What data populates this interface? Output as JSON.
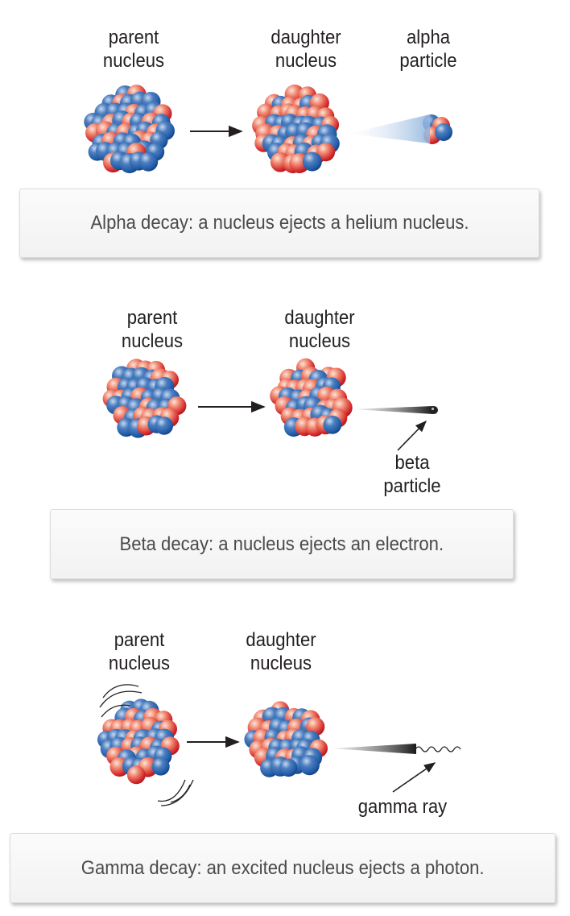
{
  "alpha": {
    "parent_label": [
      "parent",
      "nucleus"
    ],
    "daughter_label": [
      "daughter",
      "nucleus"
    ],
    "particle_label": [
      "alpha",
      "particle"
    ],
    "caption": "Alpha decay: a nucleus ejects a helium nucleus."
  },
  "beta": {
    "parent_label": [
      "parent",
      "nucleus"
    ],
    "daughter_label": [
      "daughter",
      "nucleus"
    ],
    "particle_label": [
      "beta",
      "particle"
    ],
    "caption": "Beta decay: a nucleus ejects an electron."
  },
  "gamma": {
    "parent_label": [
      "parent",
      "nucleus"
    ],
    "daughter_label": [
      "daughter",
      "nucleus"
    ],
    "particle_label": [
      "gamma ray"
    ],
    "caption": "Gamma decay: an excited nucleus ejects a photon."
  },
  "colors": {
    "proton": "#d42a2c",
    "neutron": "#1f5aa6",
    "arrow": "#231f20",
    "caption_text": "#4a4a4a"
  }
}
